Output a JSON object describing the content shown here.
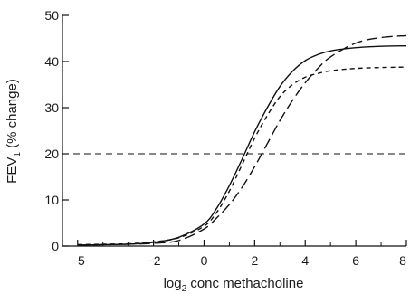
{
  "chart_data": {
    "type": "line",
    "xlabel": {
      "main": "log",
      "sub": "2",
      "rest": " conc methacholine"
    },
    "ylabel": {
      "main": "FEV",
      "sub": "1",
      "rest": " (% change)"
    },
    "xlim": [
      -5.6,
      8
    ],
    "ylim": [
      0,
      50
    ],
    "x_ticks": [
      -5,
      -2,
      0,
      2,
      4,
      6,
      8
    ],
    "x_tick_labels": [
      "−5",
      "−2",
      "0",
      "2",
      "4",
      "6",
      "8"
    ],
    "x_minor_ticks": [
      -4,
      -3,
      -1,
      1,
      3,
      5,
      7
    ],
    "y_ticks": [
      0,
      10,
      20,
      30,
      40,
      50
    ],
    "y_tick_labels": [
      "0",
      "10",
      "20",
      "30",
      "40",
      "50"
    ],
    "grid": false,
    "reference_line": {
      "y": 20,
      "style": "dashed"
    },
    "series": [
      {
        "style": "solid",
        "color": "#111111",
        "x": [
          -5,
          -4,
          -3,
          -2,
          -1,
          0,
          0.5,
          1,
          1.5,
          2,
          2.5,
          3,
          3.5,
          4,
          4.5,
          5,
          6,
          7,
          8
        ],
        "y": [
          0.2,
          0.3,
          0.4,
          0.8,
          1.9,
          4.8,
          8.2,
          13.1,
          18.8,
          24.8,
          30.0,
          34.6,
          37.9,
          40.2,
          41.5,
          42.3,
          43.0,
          43.3,
          43.4
        ]
      },
      {
        "style": "dashed",
        "color": "#111111",
        "x": [
          -5,
          -4,
          -3,
          -2,
          -1,
          0,
          0.5,
          1,
          1.5,
          2,
          2.5,
          3,
          3.5,
          4,
          4.5,
          5,
          6,
          7,
          8
        ],
        "y": [
          0.3,
          0.4,
          0.5,
          0.9,
          1.8,
          4.3,
          7.3,
          11.9,
          17.6,
          23.4,
          28.3,
          32.4,
          35.0,
          36.6,
          37.4,
          38.0,
          38.5,
          38.7,
          38.8
        ]
      },
      {
        "style": "long-dash",
        "color": "#111111",
        "x": [
          -5,
          -4,
          -3,
          -2,
          -1,
          0,
          0.5,
          1,
          1.5,
          2,
          2.5,
          3,
          3.5,
          4,
          4.5,
          5,
          6,
          7,
          8
        ],
        "y": [
          0.2,
          0.3,
          0.4,
          0.6,
          1.2,
          3.7,
          6.1,
          9.0,
          12.7,
          17.2,
          22.2,
          27.2,
          31.6,
          35.4,
          38.5,
          41.0,
          44.0,
          45.2,
          45.6
        ]
      }
    ]
  }
}
